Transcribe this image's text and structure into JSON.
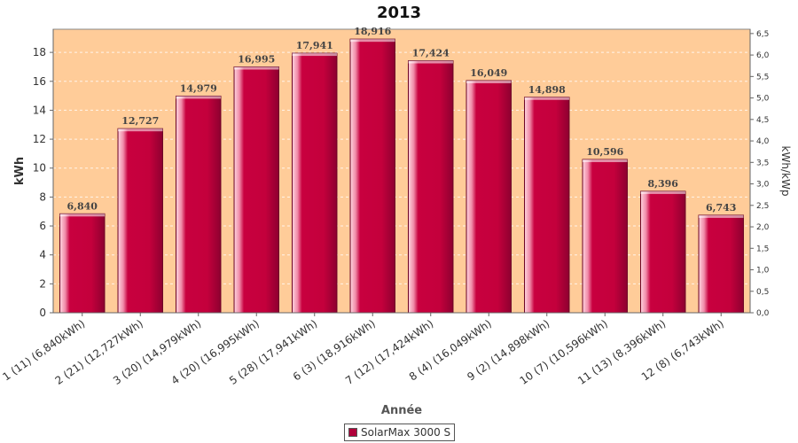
{
  "chart_data": {
    "type": "bar",
    "title": "2013",
    "xlabel": "Année",
    "ylabel": "kWh",
    "y2label": "kWh/kWp",
    "ylim": [
      0,
      19.6
    ],
    "y2lim": [
      0,
      6.6
    ],
    "yticks": [
      "0",
      "2",
      "4",
      "6",
      "8",
      "10",
      "12",
      "14",
      "16",
      "18"
    ],
    "y2ticks": [
      "0,0",
      "0,5",
      "1,0",
      "1,5",
      "2,0",
      "2,5",
      "3,0",
      "3,5",
      "4,0",
      "4,5",
      "5,0",
      "5,5",
      "6,0",
      "6,5"
    ],
    "categories": [
      "1 (11)  (6,840kWh)",
      "2 (21)  (12,727kWh)",
      "3 (20)  (14,979kWh)",
      "4 (20)  (16,995kWh)",
      "5 (28)  (17,941kWh)",
      "6 (3)  (18,916kWh)",
      "7 (12)  (17,424kWh)",
      "8 (4)  (16,049kWh)",
      "9 (2)  (14,898kWh)",
      "10 (7)  (10,596kWh)",
      "11 (13)  (8,396kWh)",
      "12 (8)  (6,743kWh)"
    ],
    "values": [
      6.84,
      12.727,
      14.979,
      16.995,
      17.941,
      18.916,
      17.424,
      16.049,
      14.898,
      10.596,
      8.396,
      6.743
    ],
    "value_labels": [
      "6,840",
      "12,727",
      "14,979",
      "16,995",
      "17,941",
      "18,916",
      "17,424",
      "16,049",
      "14,898",
      "10,596",
      "8,396",
      "6,743"
    ],
    "series": [
      {
        "name": "SolarMax 3000 S",
        "color": "#b0003a"
      }
    ],
    "background_color": "#ffcc99",
    "grid": true,
    "legend_position": "bottom"
  }
}
